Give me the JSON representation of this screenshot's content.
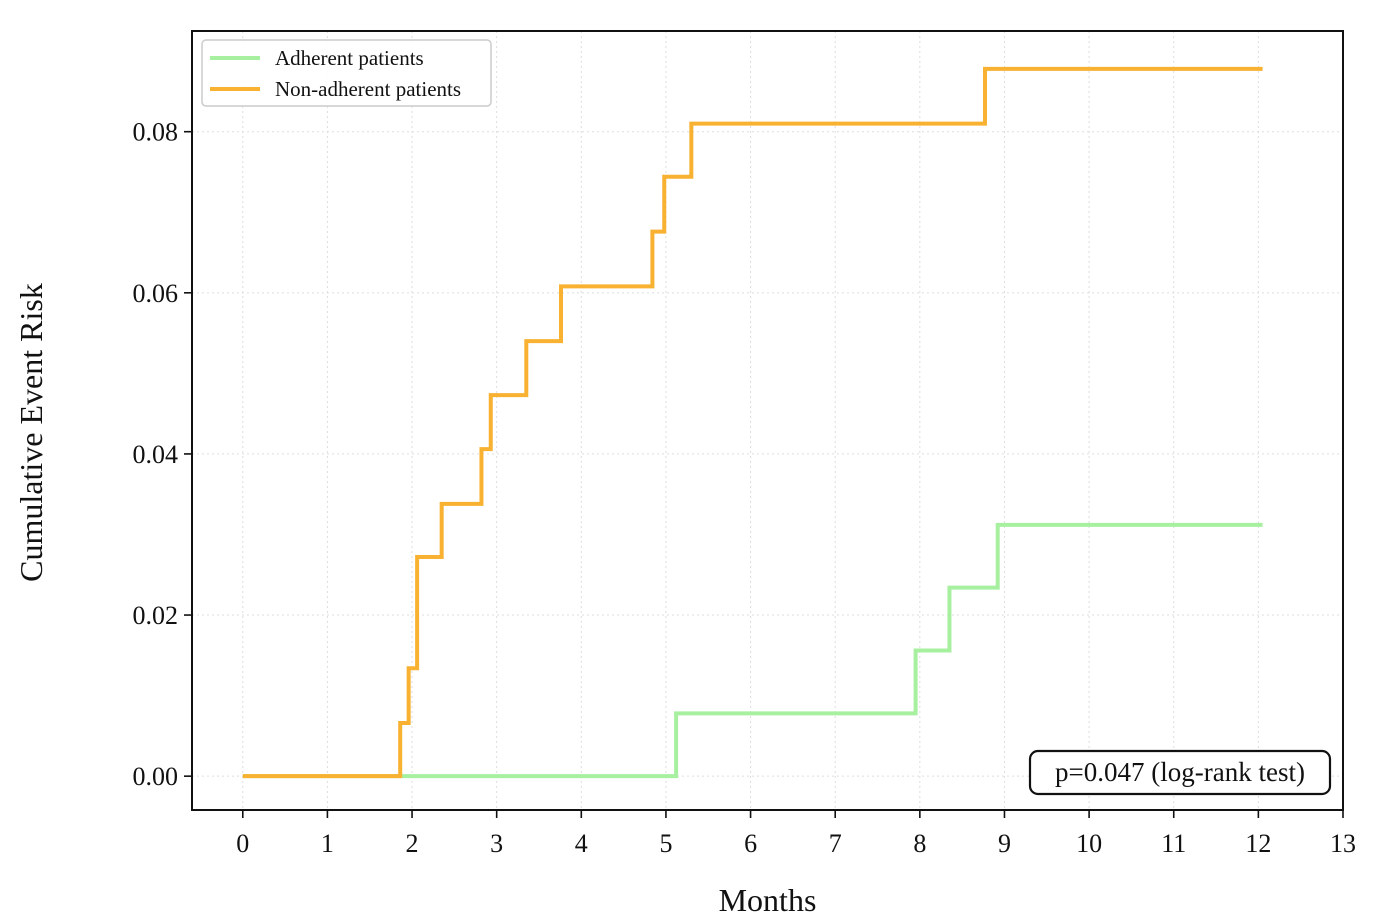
{
  "chart_data": {
    "type": "line",
    "step": true,
    "title": "",
    "xlabel": "Months",
    "ylabel": "Cumulative Event Risk",
    "xlim": [
      -0.6,
      13
    ],
    "ylim": [
      -0.0042,
      0.0925
    ],
    "xticks": [
      0,
      1,
      2,
      3,
      4,
      5,
      6,
      7,
      8,
      9,
      10,
      11,
      12,
      13
    ],
    "yticks": [
      0.0,
      0.02,
      0.04,
      0.06,
      0.08
    ],
    "ytick_labels": [
      "0.00",
      "0.02",
      "0.04",
      "0.06",
      "0.08"
    ],
    "grid": true,
    "legend_position": "top-left",
    "series": [
      {
        "name": "Adherent patients",
        "color": "#a6f0a0",
        "x": [
          0,
          5.12,
          7.95,
          8.35,
          8.92,
          12.05
        ],
        "y": [
          0.0,
          0.0078,
          0.0156,
          0.0234,
          0.0312,
          0.0312
        ]
      },
      {
        "name": "Non-adherent patients",
        "color": "#f8b130",
        "x": [
          0,
          1.86,
          1.96,
          2.06,
          2.35,
          2.82,
          2.93,
          3.35,
          3.76,
          4.84,
          4.98,
          5.3,
          8.77,
          12.05
        ],
        "y": [
          0.0,
          0.0066,
          0.0134,
          0.0272,
          0.0338,
          0.0406,
          0.0473,
          0.054,
          0.0608,
          0.0676,
          0.0744,
          0.081,
          0.0878,
          0.0878
        ]
      }
    ],
    "annotation": {
      "text": "p=0.047 (log-rank test)",
      "position": "bottom-right"
    }
  }
}
